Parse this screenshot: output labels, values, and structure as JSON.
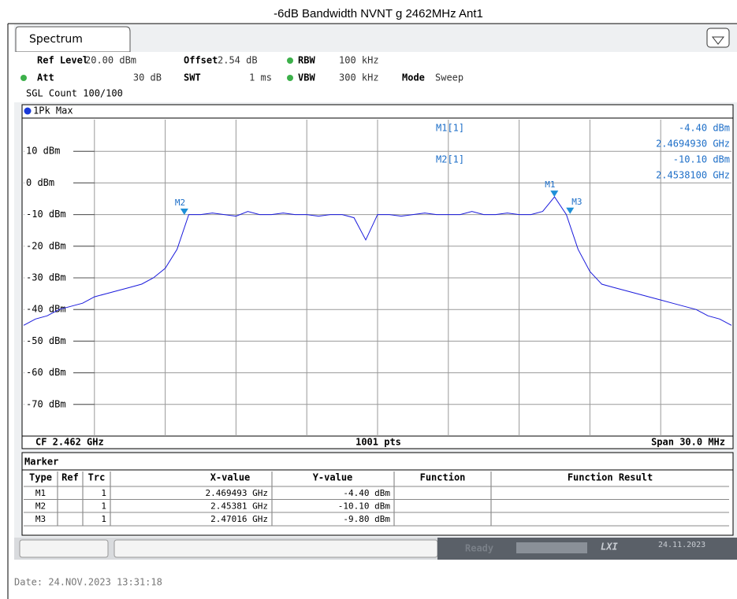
{
  "title": "-6dB Bandwidth NVNT g 2462MHz Ant1",
  "tab": "Spectrum",
  "settings": [
    {
      "label": "Ref Level",
      "value": "20.00 dBm"
    },
    {
      "label": "Offset",
      "value": "2.54 dB"
    },
    {
      "label": "RBW",
      "value": "100 kHz"
    },
    {
      "label": "Att",
      "value": "30 dB"
    },
    {
      "label": "SWT",
      "value": "1 ms"
    },
    {
      "label": "VBW",
      "value": "300 kHz"
    },
    {
      "label": "Mode",
      "value": "Sweep"
    }
  ],
  "sweep_count": "SGL Count 100/100",
  "marker_readout": [
    {
      "name": "M1[1]",
      "lines": [
        "-4.40 dBm",
        "2.4694930 GHz"
      ]
    },
    {
      "name": "M2[1]",
      "lines": [
        "-10.10 dBm",
        "2.4538100 GHz"
      ]
    }
  ],
  "chart_data": {
    "type": "line",
    "x": [
      2.447,
      2.4475,
      2.448,
      2.4485,
      2.449,
      2.4495,
      2.45,
      2.4505,
      2.451,
      2.4515,
      2.452,
      2.4525,
      2.453,
      2.4535,
      2.454,
      2.4545,
      2.455,
      2.4555,
      2.456,
      2.4565,
      2.457,
      2.4575,
      2.458,
      2.4585,
      2.459,
      2.4595,
      2.46,
      2.4605,
      2.461,
      2.4615,
      2.462,
      2.4625,
      2.463,
      2.4635,
      2.464,
      2.4645,
      2.465,
      2.4655,
      2.466,
      2.4665,
      2.467,
      2.4675,
      2.468,
      2.4685,
      2.469,
      2.4695,
      2.47,
      2.4705,
      2.471,
      2.4715,
      2.472,
      2.4725,
      2.473,
      2.4735,
      2.474,
      2.4745,
      2.475,
      2.4755,
      2.476,
      2.4765,
      2.477
    ],
    "series": [
      {
        "name": "1Pk Max",
        "color": "#1a1adc",
        "values": [
          -45,
          -43,
          -42,
          -40,
          -39,
          -38,
          -36,
          -35,
          -34,
          -33,
          -32,
          -30,
          -27,
          -21,
          -10,
          -10,
          -9.5,
          -10,
          -10.5,
          -9,
          -10,
          -10,
          -9.5,
          -10,
          -10,
          -10.5,
          -10,
          -10,
          -11,
          -18,
          -10,
          -10,
          -10.5,
          -10,
          -9.5,
          -10,
          -10,
          -10,
          -9,
          -10,
          -10,
          -9.5,
          -10,
          -10,
          -9,
          -4.4,
          -10,
          -21,
          -28,
          -32,
          -33,
          -34,
          -35,
          -36,
          -37,
          -38,
          -39,
          -40,
          -42,
          -43,
          -45
        ]
      }
    ],
    "markers": [
      {
        "name": "M1",
        "x": 2.469493,
        "y": -4.4
      },
      {
        "name": "M2",
        "x": 2.45381,
        "y": -10.1
      },
      {
        "name": "M3",
        "x": 2.47016,
        "y": -9.8
      }
    ],
    "xlim": [
      2.447,
      2.477
    ],
    "ylim": [
      -80,
      20
    ],
    "yticks": [
      {
        "value": 10,
        "label": "10 dBm"
      },
      {
        "value": 0,
        "label": "0 dBm"
      },
      {
        "value": -10,
        "label": "-10 dBm"
      },
      {
        "value": -20,
        "label": "-20 dBm"
      },
      {
        "value": -30,
        "label": "-30 dBm"
      },
      {
        "value": -40,
        "label": "-40 dBm"
      },
      {
        "value": -50,
        "label": "-50 dBm"
      },
      {
        "value": -60,
        "label": "-60 dBm"
      },
      {
        "value": -70,
        "label": "-70 dBm"
      }
    ],
    "grid": true
  },
  "footer": {
    "center_frequency": "CF 2.462 GHz",
    "points": "1001 pts",
    "span": "Span 30.0 MHz"
  },
  "marker_table": {
    "title": "Marker",
    "columns": [
      "Type",
      "Ref",
      "Trc",
      "X-value",
      "Y-value",
      "Function",
      "Function Result"
    ],
    "rows": [
      [
        "M1",
        "",
        "1",
        "2.469493 GHz",
        "-4.40 dBm",
        "",
        ""
      ],
      [
        "M2",
        "",
        "1",
        "2.45381 GHz",
        "-10.10 dBm",
        "",
        ""
      ],
      [
        "M3",
        "",
        "1",
        "2.47016 GHz",
        "-9.80 dBm",
        "",
        ""
      ]
    ]
  },
  "status": {
    "state": "Ready",
    "logo": "LXI",
    "date": "24.11.2023"
  },
  "date_line": "Date: 24.NOV.2023  13:31:18"
}
